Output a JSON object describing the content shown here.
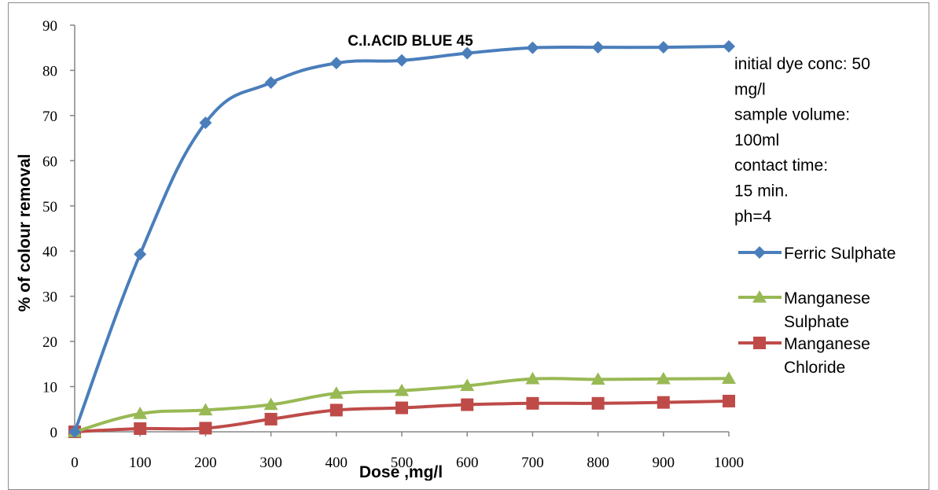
{
  "chart_data": {
    "type": "line",
    "title": "C.I.ACID BLUE 45",
    "xlabel": "Dose ,mg/l",
    "ylabel": "% of colour removal",
    "x": [
      0,
      100,
      200,
      300,
      400,
      500,
      600,
      700,
      800,
      900,
      1000
    ],
    "xticks": [
      "0",
      "100",
      "200",
      "300",
      "400",
      "500",
      "600",
      "700",
      "800",
      "900",
      "1000"
    ],
    "yticks": [
      "0",
      "10",
      "20",
      "30",
      "40",
      "50",
      "60",
      "70",
      "80",
      "90"
    ],
    "xlim": [
      0,
      1000
    ],
    "ylim": [
      0,
      90
    ],
    "grid": false,
    "legend_position": "right",
    "notes": [
      "initial dye conc: 50",
      "mg/l",
      "sample volume:",
      "100ml",
      "contact time:",
      "15 min.",
      "ph=4"
    ],
    "series": [
      {
        "name": "Ferric Sulphate",
        "legend_lines": [
          "Ferric Sulphate"
        ],
        "marker": "diamond",
        "color": "#4a7ebb",
        "values": [
          0,
          39.3,
          68.4,
          77.3,
          81.6,
          82.2,
          83.8,
          85.0,
          85.1,
          85.1,
          85.3
        ]
      },
      {
        "name": "Manganese Sulphate",
        "legend_lines": [
          "Manganese",
          "Sulphate"
        ],
        "marker": "triangle",
        "color": "#98b954",
        "values": [
          0,
          4.0,
          4.8,
          6.0,
          8.5,
          9.1,
          10.2,
          11.7,
          11.6,
          11.7,
          11.8
        ]
      },
      {
        "name": "Manganese Chloride",
        "legend_lines": [
          "Manganese",
          "Chloride"
        ],
        "marker": "square",
        "color": "#be4b48",
        "values": [
          0,
          0.7,
          0.8,
          2.8,
          4.8,
          5.3,
          6.0,
          6.3,
          6.3,
          6.5,
          6.8
        ]
      }
    ]
  }
}
